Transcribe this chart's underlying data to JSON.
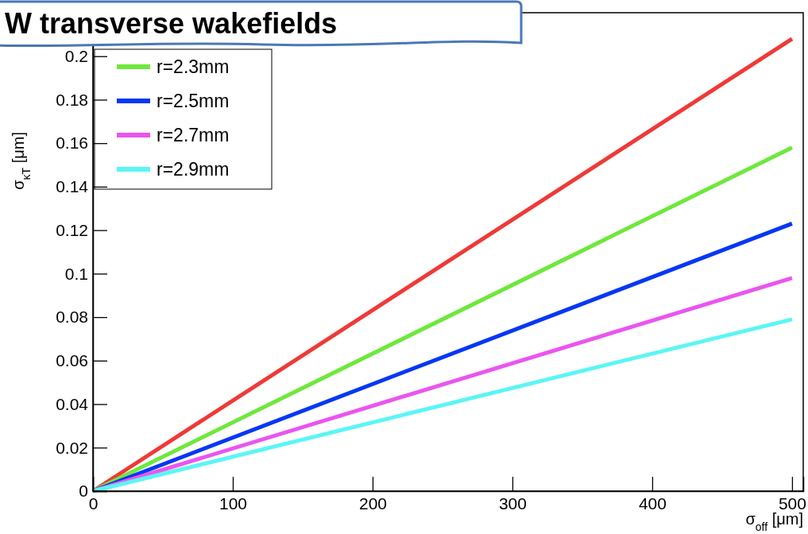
{
  "chart_data": {
    "type": "line",
    "title": "W transverse wakefields",
    "xlabel": "σ$_{off}$ [μm]",
    "ylabel": "σ$_{κT}$ [μm]",
    "xlim": [
      0,
      508
    ],
    "ylim": [
      0,
      0.22
    ],
    "xticks": [
      0,
      100,
      200,
      300,
      400,
      500
    ],
    "yticks": [
      0,
      0.02,
      0.04,
      0.06,
      0.08,
      0.1,
      0.12,
      0.14,
      0.16,
      0.18,
      0.2
    ],
    "x": [
      0,
      500
    ],
    "legend": "top left",
    "marker": "none",
    "line_style": "solid",
    "series": [
      {
        "color": "#ee3a37",
        "values": [
          0,
          0.208
        ]
      },
      {
        "name": "r=2.3mm",
        "color": "#6ee83c",
        "values": [
          0,
          0.158
        ]
      },
      {
        "name": "r=2.5mm",
        "color": "#0537f5",
        "values": [
          0,
          0.123
        ]
      },
      {
        "name": "r=2.7mm",
        "color": "#ea55ef",
        "values": [
          0,
          0.098
        ]
      },
      {
        "name": "r=2.9mm",
        "color": "#5cf5f5",
        "values": [
          0,
          0.079
        ]
      }
    ]
  }
}
